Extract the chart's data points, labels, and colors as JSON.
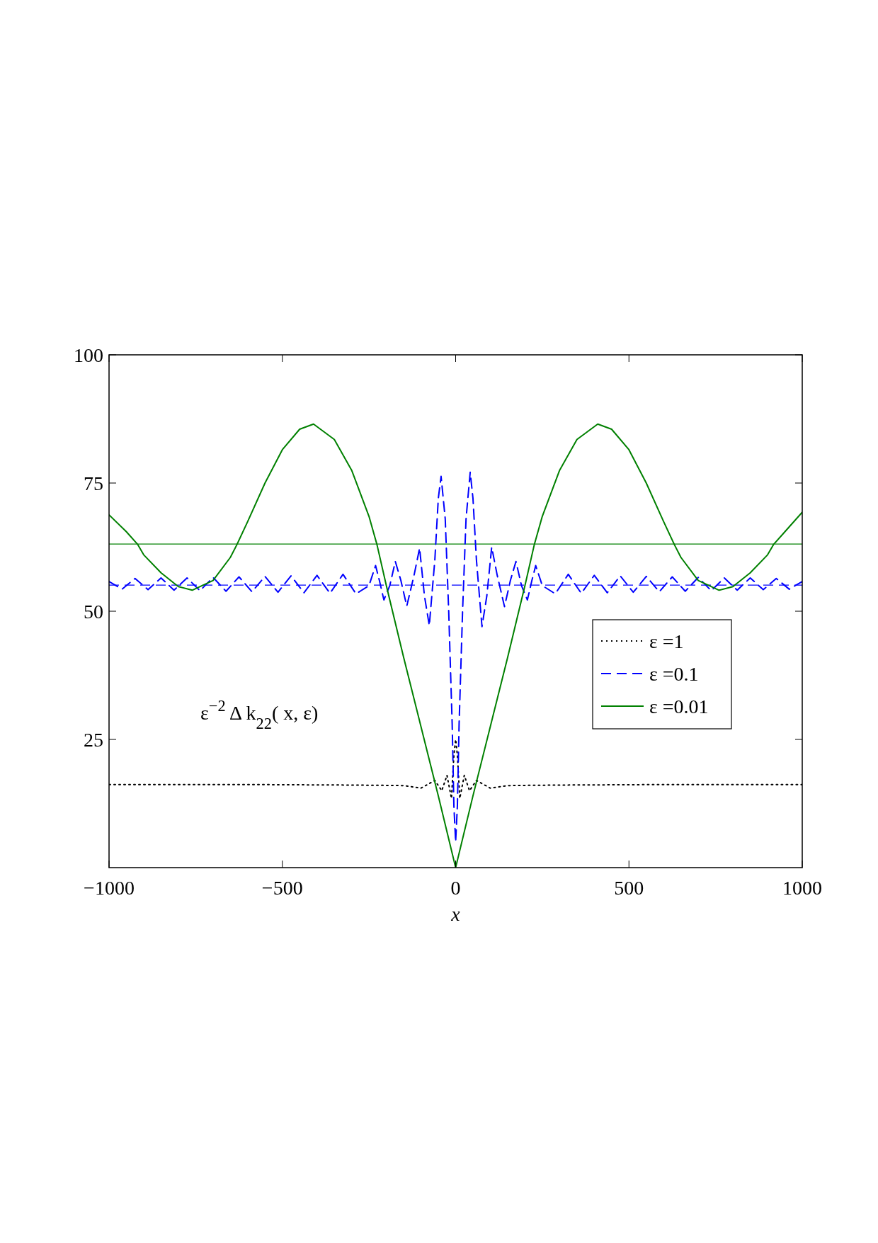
{
  "chart_data": {
    "type": "line",
    "xlabel": "x",
    "xlim": [
      -1000,
      1000
    ],
    "xticks": [
      -1000,
      -500,
      0,
      500,
      1000
    ],
    "ylim": [
      0,
      100
    ],
    "yticks": [
      25,
      50,
      75,
      100
    ],
    "legend": "right",
    "grid": false,
    "annotations": [
      "ε$^{−2}$ Δ k$_{22}$( x, ε)"
    ],
    "ref_lines": [
      {
        "axis": "y",
        "value": 63.1,
        "color": "#008000",
        "line_style": "solid"
      },
      {
        "axis": "y",
        "value": 55.1,
        "color": "#0000ff",
        "line_style": "dashed"
      }
    ],
    "series": [
      {
        "name": "ε =1",
        "color": "#000000",
        "line_style": "dotted",
        "x": [
          -1000,
          -600,
          -300,
          -150,
          -100,
          -60,
          -40,
          -25,
          -12,
          -5,
          0,
          5,
          12,
          25,
          40,
          60,
          100,
          150,
          300,
          600,
          1000
        ],
        "values": [
          16.2,
          16.2,
          16.1,
          16,
          15.5,
          17,
          15,
          18,
          13.5,
          22,
          25,
          22,
          13.5,
          18,
          15,
          17,
          15.5,
          16,
          16.1,
          16.2,
          16.2
        ]
      },
      {
        "name": "ε =0.1",
        "color": "#0000ff",
        "line_style": "dashed",
        "x": [
          -1000,
          -962.5,
          -925,
          -887.5,
          -850,
          -812.5,
          -775,
          -737.5,
          -700,
          -662.5,
          -625,
          -587.5,
          -550,
          -512.5,
          -475,
          -437.5,
          -400,
          -362.5,
          -325,
          -287.5,
          -250,
          -231,
          -220,
          -207,
          -190,
          -174,
          -158,
          -141,
          -120,
          -104,
          -90,
          -76,
          -60,
          -50,
          -42,
          -30,
          -20,
          -10,
          -5,
          0,
          5,
          10,
          20,
          30,
          42,
          50,
          60,
          76,
          90,
          104,
          120,
          141,
          158,
          174,
          190,
          207,
          220,
          231,
          250,
          287.5,
          325,
          362.5,
          400,
          437.5,
          475,
          512.5,
          550,
          587.5,
          625,
          662.5,
          700,
          737.5,
          775,
          812.5,
          850,
          887.5,
          925,
          962.5,
          1000
        ],
        "values": [
          55.8,
          54.3,
          56.4,
          54.2,
          56.5,
          54.1,
          56.5,
          54,
          56.6,
          53.9,
          56.7,
          53.8,
          56.8,
          53.7,
          56.9,
          53.6,
          57,
          53.5,
          57.2,
          53.4,
          55,
          58.9,
          56,
          52.2,
          55,
          59.7,
          56,
          51,
          57,
          62.3,
          53,
          47.2,
          60,
          72,
          76.3,
          68,
          50,
          28,
          12,
          5,
          12,
          28,
          50,
          68,
          77.1,
          72,
          60,
          47,
          53,
          62.5,
          57,
          50.9,
          56,
          59.7,
          55,
          52.2,
          56,
          58.9,
          55,
          53.4,
          57.2,
          53.5,
          57,
          53.6,
          56.9,
          53.7,
          56.8,
          53.8,
          56.7,
          53.9,
          56.6,
          54,
          56.5,
          54.1,
          56.5,
          54.2,
          56.4,
          54.3,
          55.8
        ]
      },
      {
        "name": "ε =0.01",
        "color": "#008000",
        "line_style": "solid",
        "x": [
          -1000,
          -950,
          -917,
          -900,
          -850,
          -800,
          -760,
          -700,
          -650,
          -631,
          -600,
          -550,
          -500,
          -450,
          -410,
          -350,
          -300,
          -250,
          -227,
          -200,
          -150,
          -100,
          -50,
          0,
          50,
          100,
          150,
          200,
          227,
          250,
          300,
          350,
          410,
          450,
          500,
          550,
          600,
          631,
          650,
          700,
          760,
          800,
          850,
          900,
          917,
          950,
          1000
        ],
        "values": [
          68.8,
          65.5,
          63,
          61,
          57.5,
          54.8,
          54.1,
          56,
          60.5,
          63,
          67.5,
          75,
          81.5,
          85.5,
          86.5,
          83.5,
          77.5,
          68.5,
          63,
          55,
          41,
          27.5,
          14,
          0,
          14,
          27.5,
          41,
          55,
          63,
          68.5,
          77.5,
          83.5,
          86.5,
          85.5,
          81.5,
          75,
          67.5,
          63,
          60.5,
          56,
          54.1,
          54.8,
          57.5,
          61,
          63,
          65.5,
          69.3
        ]
      }
    ]
  }
}
